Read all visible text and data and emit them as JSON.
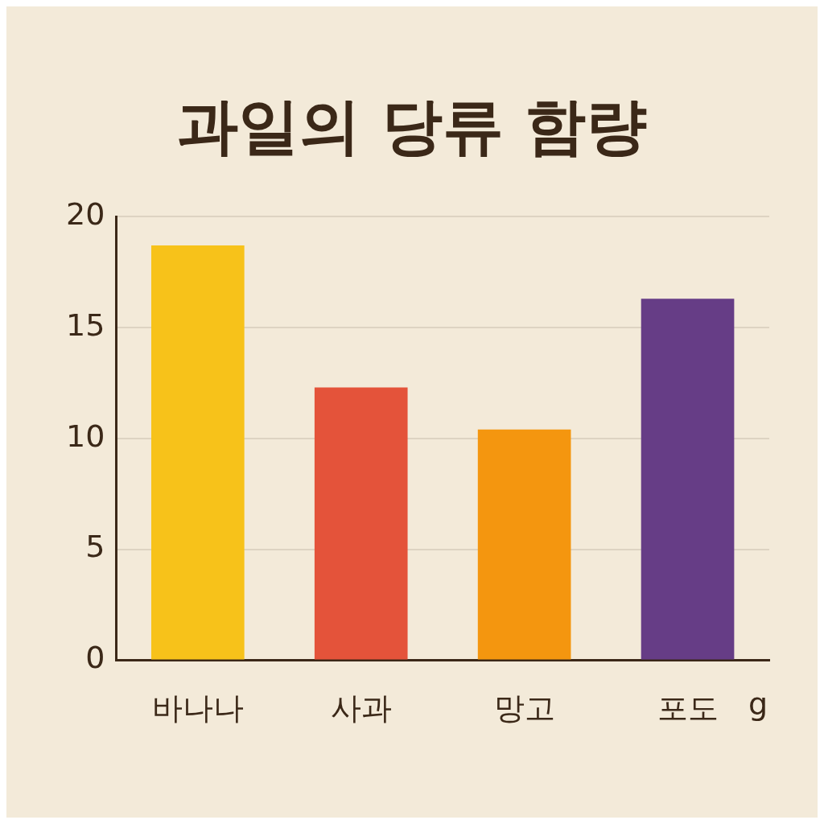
{
  "chart_data": {
    "type": "bar",
    "title": "과일의 당류 함량",
    "xlabel": "g",
    "categories": [
      "바나나",
      "사과",
      "망고",
      "포도"
    ],
    "values": [
      18.7,
      12.3,
      10.4,
      16.3
    ],
    "colors": [
      "#f7c21a",
      "#e4533a",
      "#f4960f",
      "#663d86"
    ],
    "ylim": [
      0,
      20
    ],
    "yticks": [
      0,
      5,
      10,
      15,
      20
    ],
    "grid": "y",
    "legend": false
  }
}
